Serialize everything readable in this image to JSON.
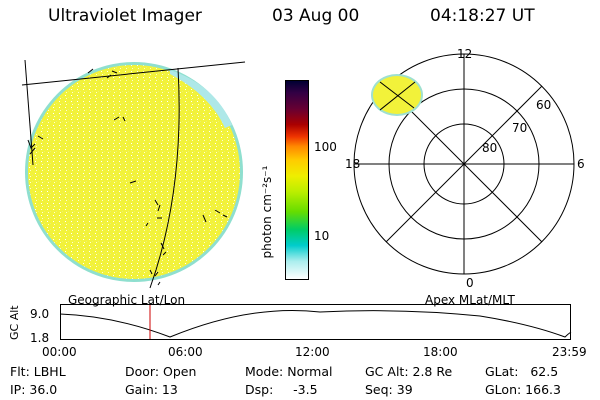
{
  "header": {
    "instrument": "Ultraviolet Imager",
    "date": "03 Aug 00",
    "time": "04:18:27 UT"
  },
  "colorbar": {
    "unit_label": "photon cm⁻²s⁻¹",
    "ticks": [
      "100",
      "10"
    ],
    "colors": [
      "#000033",
      "#330044",
      "#660033",
      "#aa0000",
      "#ee3300",
      "#ff8800",
      "#ffcc00",
      "#eeee00",
      "#bbee00",
      "#66dd00",
      "#00cc66",
      "#00cccc",
      "#aaeeee",
      "#ffffff"
    ]
  },
  "left_panel": {
    "caption": "Geographic Lat/Lon"
  },
  "right_panel": {
    "caption": "Apex MLat/MLT",
    "mlt_labels": {
      "top": "12",
      "left": "18",
      "right": "6",
      "bottom": "0"
    },
    "lat_labels": [
      "60",
      "70",
      "80"
    ]
  },
  "orbit_plot": {
    "ylabel": "GC Alt",
    "ymax": "9.0",
    "ymin": "1.8",
    "time_ticks": [
      "00:00",
      "06:00",
      "12:00",
      "18:00",
      "23:59"
    ]
  },
  "info": {
    "flt": "Flt: LBHL",
    "ip": "IP: 36.0",
    "door": "Door: Open",
    "gain": "Gain: 13",
    "mode": "Mode: Normal",
    "dsp": "Dsp:     -3.5",
    "gcalt": "GC Alt: 2.8 Re",
    "seq": "Seq: 39",
    "glat": "GLat:   62.5",
    "glon": "GLon: 166.3"
  }
}
